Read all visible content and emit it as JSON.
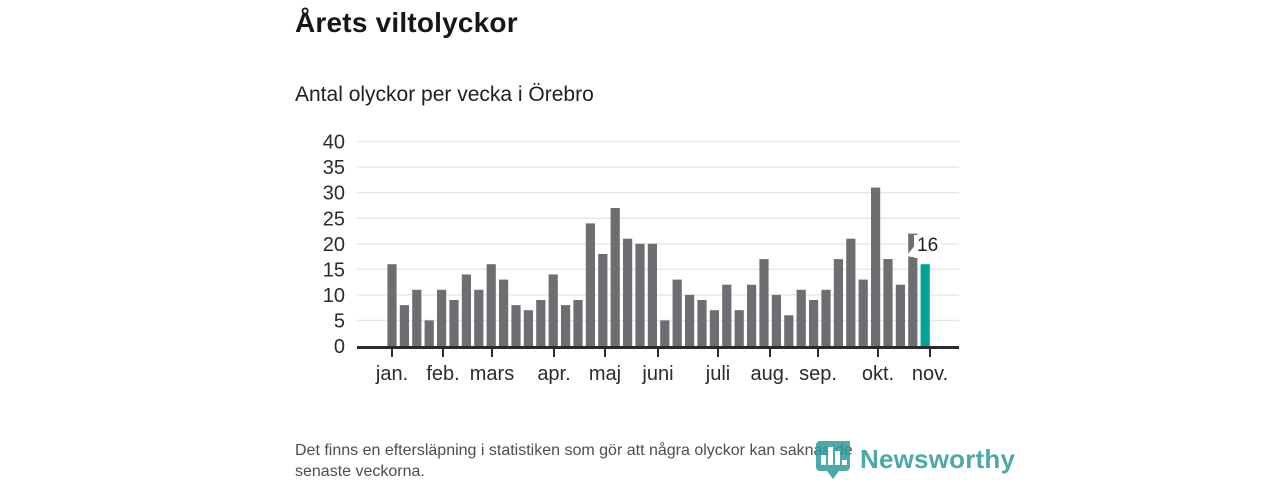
{
  "header": {
    "title": "Årets viltolyckor",
    "subtitle": "Antal olyckor per vecka i Örebro"
  },
  "chart_data": {
    "type": "bar",
    "title": "Årets viltolyckor",
    "subtitle": "Antal olyckor per vecka i Örebro",
    "x_unit": "vecka (week of year)",
    "values": [
      16,
      8,
      11,
      5,
      11,
      9,
      14,
      11,
      16,
      13,
      8,
      7,
      9,
      14,
      8,
      9,
      24,
      18,
      27,
      21,
      20,
      20,
      5,
      13,
      10,
      9,
      7,
      12,
      7,
      12,
      17,
      10,
      6,
      11,
      9,
      11,
      17,
      21,
      13,
      31,
      17,
      12,
      22,
      16
    ],
    "month_labels": [
      "jan.",
      "feb.",
      "mars",
      "apr.",
      "maj",
      "juni",
      "juli",
      "aug.",
      "sep.",
      "okt.",
      "nov."
    ],
    "y_ticks": [
      0,
      5,
      10,
      15,
      20,
      25,
      30,
      35,
      40
    ],
    "ylim": [
      0,
      40
    ],
    "grid": true,
    "legend": "none",
    "bar_color": "#6d6d72",
    "highlight_color": "#00a399",
    "highlight_index": 43,
    "highlight_value_label": "16"
  },
  "footer": {
    "lines": [
      "Det finns en eftersläpning i statistiken som gör att några olyckor kan saknas de",
      "senaste veckorna."
    ]
  },
  "branding": {
    "logo_text": "Newsworthy",
    "logo_color": "#2d9b9b",
    "logo_icon": "bar-chart-pin-icon"
  }
}
